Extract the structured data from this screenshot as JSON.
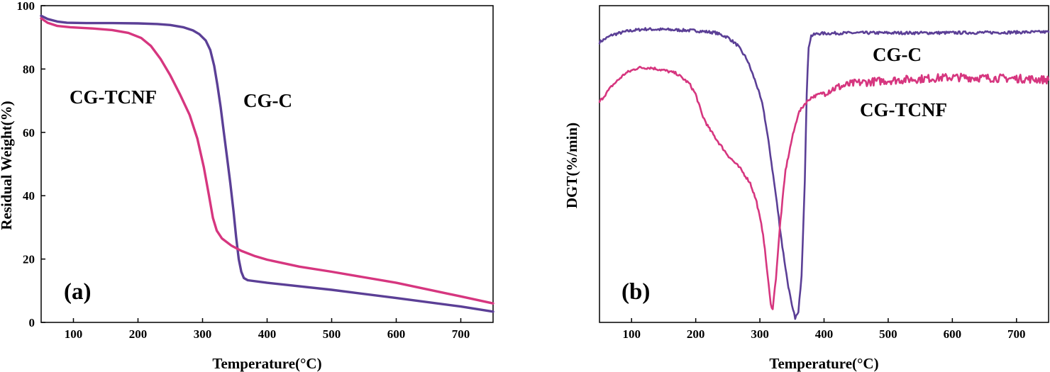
{
  "chart_data": [
    {
      "type": "line",
      "panel_label": "(a)",
      "xlabel": "Temperature(°C)",
      "ylabel": "Residual Weight(%)",
      "xlim": [
        50,
        750
      ],
      "ylim": [
        0,
        100
      ],
      "xticks": [
        100,
        200,
        300,
        400,
        500,
        600,
        700
      ],
      "yticks": [
        0,
        20,
        40,
        60,
        80,
        100
      ],
      "series": [
        {
          "name": "CG-C",
          "color": "#5b3f96",
          "points": [
            [
              50,
              96.8
            ],
            [
              60,
              95.8
            ],
            [
              75,
              95
            ],
            [
              90,
              94.6
            ],
            [
              120,
              94.5
            ],
            [
              160,
              94.5
            ],
            [
              200,
              94.4
            ],
            [
              230,
              94.2
            ],
            [
              250,
              93.9
            ],
            [
              270,
              93.2
            ],
            [
              285,
              92.2
            ],
            [
              295,
              91
            ],
            [
              305,
              89
            ],
            [
              312,
              86
            ],
            [
              318,
              81
            ],
            [
              323,
              75
            ],
            [
              328,
              68
            ],
            [
              333,
              60
            ],
            [
              338,
              52
            ],
            [
              343,
              44
            ],
            [
              348,
              35
            ],
            [
              352,
              27
            ],
            [
              356,
              20
            ],
            [
              360,
              16
            ],
            [
              364,
              14
            ],
            [
              370,
              13.3
            ],
            [
              400,
              12.5
            ],
            [
              500,
              10.3
            ],
            [
              600,
              7.7
            ],
            [
              700,
              5
            ],
            [
              750,
              3.4
            ]
          ]
        },
        {
          "name": "CG-TCNF",
          "color": "#d6367f",
          "points": [
            [
              50,
              96
            ],
            [
              60,
              94.6
            ],
            [
              75,
              93.6
            ],
            [
              95,
              93.2
            ],
            [
              130,
              92.8
            ],
            [
              160,
              92.3
            ],
            [
              185,
              91.4
            ],
            [
              205,
              89.8
            ],
            [
              220,
              87.3
            ],
            [
              235,
              83.2
            ],
            [
              250,
              78
            ],
            [
              265,
              72
            ],
            [
              280,
              65.5
            ],
            [
              292,
              58
            ],
            [
              302,
              49
            ],
            [
              310,
              40
            ],
            [
              316,
              33
            ],
            [
              322,
              29
            ],
            [
              330,
              26.5
            ],
            [
              345,
              24.2
            ],
            [
              360,
              22.6
            ],
            [
              380,
              21
            ],
            [
              400,
              19.8
            ],
            [
              450,
              17.6
            ],
            [
              500,
              16
            ],
            [
              600,
              12.5
            ],
            [
              700,
              8.2
            ],
            [
              750,
              6
            ]
          ]
        }
      ],
      "annotations": [
        {
          "text": "CG-TCNF",
          "x": 165,
          "y": 71.5
        },
        {
          "text": "CG-C",
          "x": 373,
          "y": 70.5
        }
      ]
    },
    {
      "type": "line",
      "panel_label": "(b)",
      "xlabel": "Temperature(°C)",
      "ylabel": "DGT(%/min)",
      "xlim": [
        50,
        750
      ],
      "ylim": [
        0,
        100
      ],
      "xticks": [
        100,
        200,
        300,
        400,
        500,
        600,
        700
      ],
      "yticks": [],
      "series": [
        {
          "name": "CG-C",
          "color": "#5b3f96",
          "points": [
            [
              50,
              88.5
            ],
            [
              70,
              90.8
            ],
            [
              95,
              92
            ],
            [
              120,
              92.6
            ],
            [
              160,
              92.4
            ],
            [
              200,
              92.1
            ],
            [
              230,
              91.5
            ],
            [
              250,
              90
            ],
            [
              265,
              87.5
            ],
            [
              280,
              83
            ],
            [
              295,
              75
            ],
            [
              305,
              68
            ],
            [
              315,
              55
            ],
            [
              325,
              40
            ],
            [
              335,
              24
            ],
            [
              343,
              13
            ],
            [
              350,
              5
            ],
            [
              355,
              1.5
            ],
            [
              360,
              3
            ],
            [
              365,
              15
            ],
            [
              370,
              45
            ],
            [
              373,
              72
            ],
            [
              376,
              87
            ],
            [
              380,
              90.5
            ],
            [
              390,
              91.2
            ],
            [
              450,
              91.4
            ],
            [
              550,
              91.4
            ],
            [
              650,
              91.5
            ],
            [
              750,
              91.7
            ]
          ]
        },
        {
          "name": "CG-TCNF",
          "color": "#d6367f",
          "points": [
            [
              50,
              69.6
            ],
            [
              70,
              74.8
            ],
            [
              90,
              78.6
            ],
            [
              110,
              80.4
            ],
            [
              130,
              80.4
            ],
            [
              150,
              79.6
            ],
            [
              170,
              78.6
            ],
            [
              190,
              75.4
            ],
            [
              200,
              72
            ],
            [
              210,
              65.5
            ],
            [
              220,
              61.5
            ],
            [
              235,
              57
            ],
            [
              250,
              52.8
            ],
            [
              270,
              48.4
            ],
            [
              285,
              44
            ],
            [
              295,
              38
            ],
            [
              305,
              28
            ],
            [
              312,
              15
            ],
            [
              317,
              5.5
            ],
            [
              320,
              4.5
            ],
            [
              325,
              14
            ],
            [
              332,
              32
            ],
            [
              340,
              48
            ],
            [
              350,
              58
            ],
            [
              360,
              66
            ],
            [
              370,
              69
            ],
            [
              380,
              71
            ],
            [
              400,
              72.6
            ],
            [
              420,
              74.2
            ],
            [
              450,
              75.6
            ],
            [
              500,
              76.4
            ],
            [
              600,
              77.4
            ],
            [
              700,
              77
            ],
            [
              750,
              76.6
            ]
          ]
        }
      ],
      "annotations": [
        {
          "text": "CG-C",
          "x": 467,
          "y": 92.5
        },
        {
          "text": "CG-TCNF",
          "x": 475,
          "y": 67
        }
      ]
    }
  ]
}
